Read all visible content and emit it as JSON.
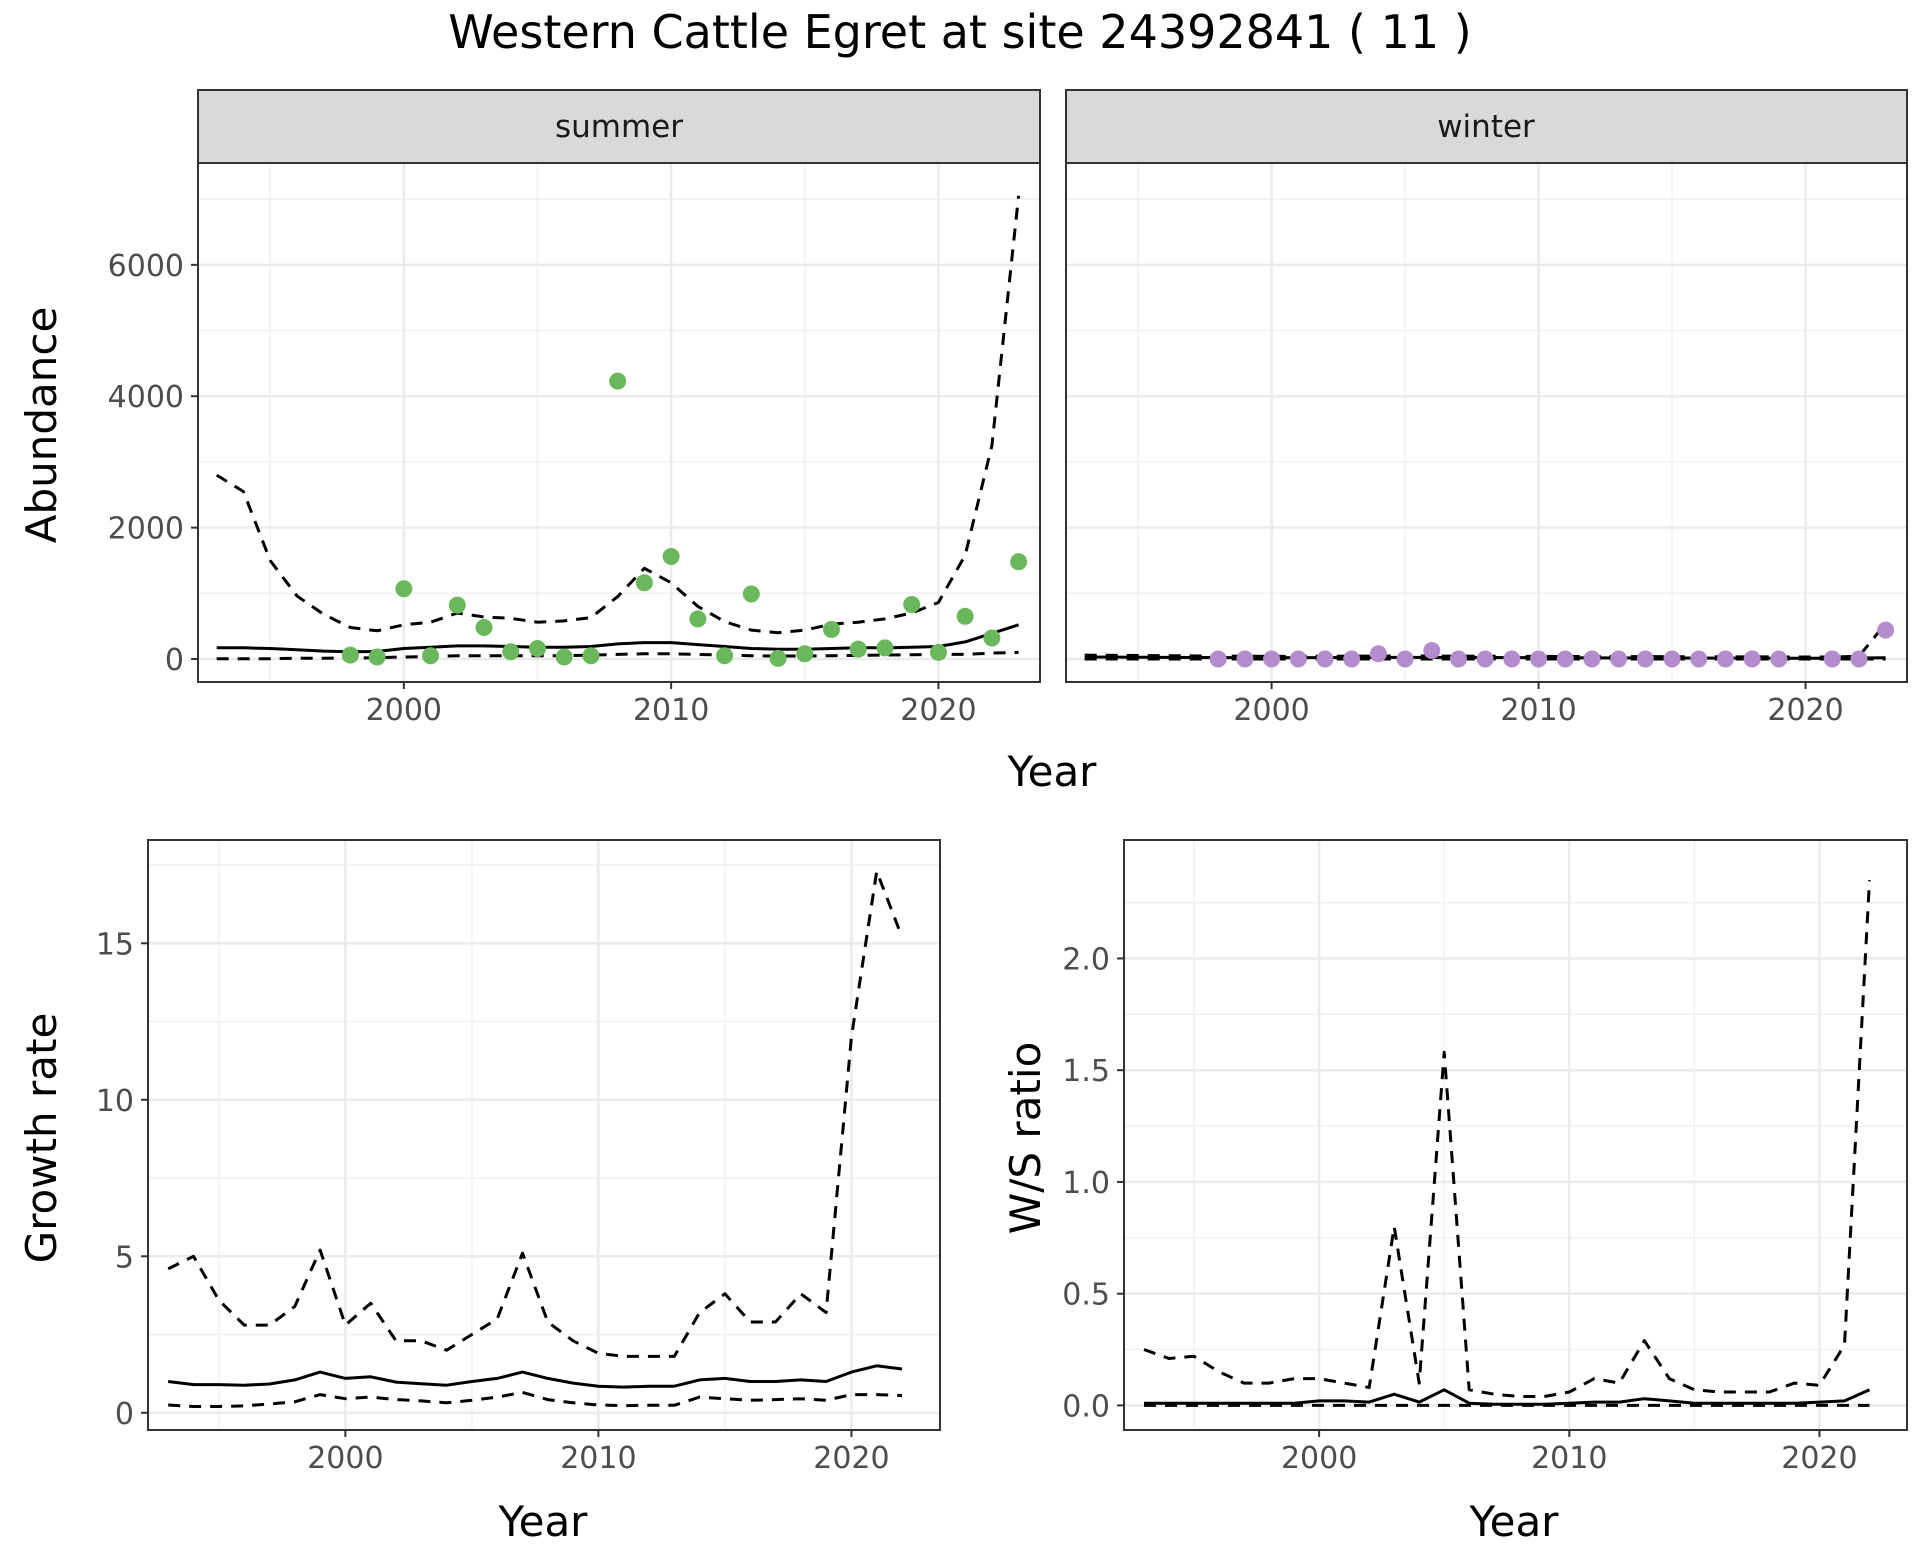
{
  "title": "Western Cattle Egret at site 24392841 ( 11 )",
  "colors": {
    "summer_points": "#6ab85b",
    "winter_points": "#b48bcc",
    "lines": "#000000"
  },
  "top": {
    "xlabel": "Year",
    "ylabel": "Abundance",
    "xticks": [
      "2000",
      "2010",
      "2020"
    ],
    "yticks": [
      "0",
      "2000",
      "4000",
      "6000"
    ],
    "panels": [
      {
        "strip": "summer"
      },
      {
        "strip": "winter"
      }
    ]
  },
  "bottom_left": {
    "xlabel": "Year",
    "ylabel": "Growth rate",
    "xticks": [
      "2000",
      "2010",
      "2020"
    ],
    "yticks": [
      "0",
      "5",
      "10",
      "15"
    ]
  },
  "bottom_right": {
    "xlabel": "Year",
    "ylabel": "W/S ratio",
    "xticks": [
      "2000",
      "2010",
      "2020"
    ],
    "yticks": [
      "0.0",
      "0.5",
      "1.0",
      "1.5",
      "2.0"
    ]
  },
  "chart_data": [
    {
      "type": "scatter",
      "facet": "summer",
      "xlim": [
        1992.3,
        2023.8
      ],
      "ylim": [
        -350,
        7550
      ],
      "points": {
        "x": [
          1998,
          1999,
          2000,
          2001,
          2002,
          2003,
          2004,
          2005,
          2006,
          2007,
          2008,
          2009,
          2010,
          2011,
          2012,
          2013,
          2014,
          2015,
          2016,
          2017,
          2018,
          2019,
          2020,
          2021,
          2022,
          2023
        ],
        "y": [
          60,
          30,
          1070,
          50,
          820,
          480,
          110,
          160,
          30,
          50,
          4230,
          1160,
          1560,
          610,
          50,
          990,
          10,
          80,
          450,
          150,
          170,
          830,
          100,
          650,
          320,
          1480
        ]
      },
      "lines": [
        {
          "style": "solid",
          "x": [
            1993,
            1994,
            1995,
            1996,
            1997,
            1998,
            1999,
            2000,
            2001,
            2002,
            2003,
            2004,
            2005,
            2006,
            2007,
            2008,
            2009,
            2010,
            2011,
            2012,
            2013,
            2014,
            2015,
            2016,
            2017,
            2018,
            2019,
            2020,
            2021,
            2022,
            2023
          ],
          "y": [
            170,
            170,
            160,
            140,
            120,
            110,
            115,
            160,
            180,
            200,
            200,
            190,
            180,
            180,
            190,
            230,
            250,
            250,
            220,
            190,
            160,
            150,
            150,
            160,
            170,
            170,
            180,
            190,
            260,
            390,
            520
          ]
        },
        {
          "style": "dashed",
          "x": [
            1993,
            1994,
            1995,
            1996,
            1997,
            1998,
            1999,
            2000,
            2001,
            2002,
            2003,
            2004,
            2005,
            2006,
            2007,
            2008,
            2009,
            2010,
            2011,
            2012,
            2013,
            2014,
            2015,
            2016,
            2017,
            2018,
            2019,
            2020,
            2021,
            2022,
            2023
          ],
          "y": [
            2800,
            2550,
            1500,
            960,
            680,
            480,
            430,
            520,
            560,
            700,
            640,
            620,
            560,
            580,
            630,
            950,
            1380,
            1160,
            800,
            570,
            440,
            400,
            440,
            530,
            560,
            610,
            700,
            860,
            1580,
            3250,
            7050
          ]
        },
        {
          "style": "dashed",
          "x": [
            1993,
            1994,
            1995,
            1996,
            1997,
            1998,
            1999,
            2000,
            2001,
            2002,
            2003,
            2004,
            2005,
            2006,
            2007,
            2008,
            2009,
            2010,
            2011,
            2012,
            2013,
            2014,
            2015,
            2016,
            2017,
            2018,
            2019,
            2020,
            2021,
            2022,
            2023
          ],
          "y": [
            5,
            5,
            5,
            10,
            10,
            15,
            20,
            30,
            40,
            50,
            50,
            50,
            50,
            50,
            60,
            70,
            80,
            80,
            70,
            60,
            50,
            45,
            45,
            50,
            55,
            60,
            65,
            70,
            70,
            90,
            100
          ]
        }
      ]
    },
    {
      "type": "scatter",
      "facet": "winter",
      "xlim": [
        1992.3,
        2023.8
      ],
      "ylim": [
        -350,
        7550
      ],
      "points": {
        "x": [
          1998,
          1999,
          2000,
          2001,
          2002,
          2003,
          2004,
          2005,
          2006,
          2007,
          2008,
          2009,
          2010,
          2011,
          2012,
          2013,
          2014,
          2015,
          2016,
          2017,
          2018,
          2019,
          2021,
          2022,
          2023
        ],
        "y": [
          0,
          0,
          0,
          0,
          0,
          0,
          80,
          0,
          130,
          0,
          0,
          0,
          0,
          0,
          0,
          0,
          0,
          0,
          0,
          0,
          0,
          0,
          0,
          0,
          440
        ]
      },
      "lines": [
        {
          "style": "solid",
          "x": [
            1993,
            1996,
            2000,
            2005,
            2010,
            2015,
            2020,
            2021,
            2022,
            2023
          ],
          "y": [
            30,
            25,
            20,
            25,
            20,
            15,
            10,
            10,
            15,
            20
          ]
        },
        {
          "style": "dashed",
          "x": [
            1993,
            1996,
            2000,
            2005,
            2010,
            2015,
            2020,
            2021,
            2022,
            2023
          ],
          "y": [
            60,
            50,
            40,
            45,
            40,
            35,
            30,
            30,
            40,
            540
          ]
        },
        {
          "style": "dashed",
          "x": [
            1993,
            2000,
            2010,
            2020,
            2023
          ],
          "y": [
            0,
            0,
            0,
            0,
            0
          ]
        }
      ]
    },
    {
      "type": "line",
      "name": "Growth rate",
      "xlim": [
        1992.2,
        2023.5
      ],
      "ylim": [
        -0.55,
        18.3
      ],
      "lines": [
        {
          "style": "solid",
          "x": [
            1993,
            1994,
            1995,
            1996,
            1997,
            1998,
            1999,
            2000,
            2001,
            2002,
            2003,
            2004,
            2005,
            2006,
            2007,
            2008,
            2009,
            2010,
            2011,
            2012,
            2013,
            2014,
            2015,
            2016,
            2017,
            2018,
            2019,
            2020,
            2021,
            2022
          ],
          "y": [
            1.0,
            0.9,
            0.9,
            0.88,
            0.92,
            1.05,
            1.3,
            1.1,
            1.15,
            0.98,
            0.93,
            0.88,
            1.0,
            1.1,
            1.3,
            1.1,
            0.95,
            0.85,
            0.82,
            0.85,
            0.85,
            1.05,
            1.1,
            1.0,
            1.0,
            1.05,
            1.0,
            1.3,
            1.5,
            1.4
          ]
        },
        {
          "style": "dashed",
          "x": [
            1993,
            1994,
            1995,
            1996,
            1997,
            1998,
            1999,
            2000,
            2001,
            2002,
            2003,
            2004,
            2005,
            2006,
            2007,
            2008,
            2009,
            2010,
            2011,
            2012,
            2013,
            2014,
            2015,
            2016,
            2017,
            2018,
            2019,
            2020,
            2021,
            2022
          ],
          "y": [
            4.6,
            5.0,
            3.6,
            2.8,
            2.8,
            3.4,
            5.2,
            2.8,
            3.5,
            2.3,
            2.3,
            2.0,
            2.5,
            3.0,
            5.1,
            2.9,
            2.3,
            1.9,
            1.8,
            1.8,
            1.8,
            3.2,
            3.8,
            2.9,
            2.9,
            3.8,
            3.2,
            12.0,
            17.3,
            15.2
          ]
        },
        {
          "style": "dashed",
          "x": [
            1993,
            1994,
            1995,
            1996,
            1997,
            1998,
            1999,
            2000,
            2001,
            2002,
            2003,
            2004,
            2005,
            2006,
            2007,
            2008,
            2009,
            2010,
            2011,
            2012,
            2013,
            2014,
            2015,
            2016,
            2017,
            2018,
            2019,
            2020,
            2021,
            2022
          ],
          "y": [
            0.25,
            0.2,
            0.2,
            0.22,
            0.28,
            0.35,
            0.58,
            0.45,
            0.5,
            0.42,
            0.38,
            0.32,
            0.4,
            0.5,
            0.65,
            0.42,
            0.32,
            0.25,
            0.23,
            0.24,
            0.24,
            0.5,
            0.45,
            0.4,
            0.42,
            0.45,
            0.4,
            0.58,
            0.58,
            0.55
          ]
        }
      ]
    },
    {
      "type": "line",
      "name": "W/S ratio",
      "xlim": [
        1992.2,
        2023.5
      ],
      "ylim": [
        -0.11,
        2.53
      ],
      "lines": [
        {
          "style": "solid",
          "x": [
            1993,
            1994,
            1995,
            1996,
            1997,
            1998,
            1999,
            2000,
            2001,
            2002,
            2003,
            2004,
            2005,
            2006,
            2007,
            2008,
            2009,
            2010,
            2011,
            2012,
            2013,
            2014,
            2015,
            2016,
            2017,
            2018,
            2019,
            2020,
            2021,
            2022
          ],
          "y": [
            0.01,
            0.01,
            0.01,
            0.01,
            0.01,
            0.01,
            0.01,
            0.02,
            0.02,
            0.015,
            0.05,
            0.015,
            0.07,
            0.01,
            0.005,
            0.005,
            0.005,
            0.01,
            0.015,
            0.015,
            0.03,
            0.02,
            0.01,
            0.01,
            0.01,
            0.01,
            0.01,
            0.015,
            0.02,
            0.07
          ]
        },
        {
          "style": "dashed",
          "x": [
            1993,
            1994,
            1995,
            1996,
            1997,
            1998,
            1999,
            2000,
            2001,
            2002,
            2003,
            2004,
            2005,
            2006,
            2007,
            2008,
            2009,
            2010,
            2011,
            2012,
            2013,
            2014,
            2015,
            2016,
            2017,
            2018,
            2019,
            2020,
            2021,
            2022
          ],
          "y": [
            0.25,
            0.21,
            0.22,
            0.15,
            0.1,
            0.1,
            0.12,
            0.12,
            0.1,
            0.08,
            0.8,
            0.1,
            1.58,
            0.07,
            0.05,
            0.04,
            0.04,
            0.06,
            0.12,
            0.1,
            0.29,
            0.12,
            0.07,
            0.06,
            0.06,
            0.06,
            0.1,
            0.09,
            0.27,
            2.35
          ]
        },
        {
          "style": "dashed",
          "x": [
            1993,
            2000,
            2005,
            2010,
            2015,
            2020,
            2022
          ],
          "y": [
            0,
            0,
            0,
            0,
            0,
            0,
            0
          ]
        }
      ]
    }
  ]
}
